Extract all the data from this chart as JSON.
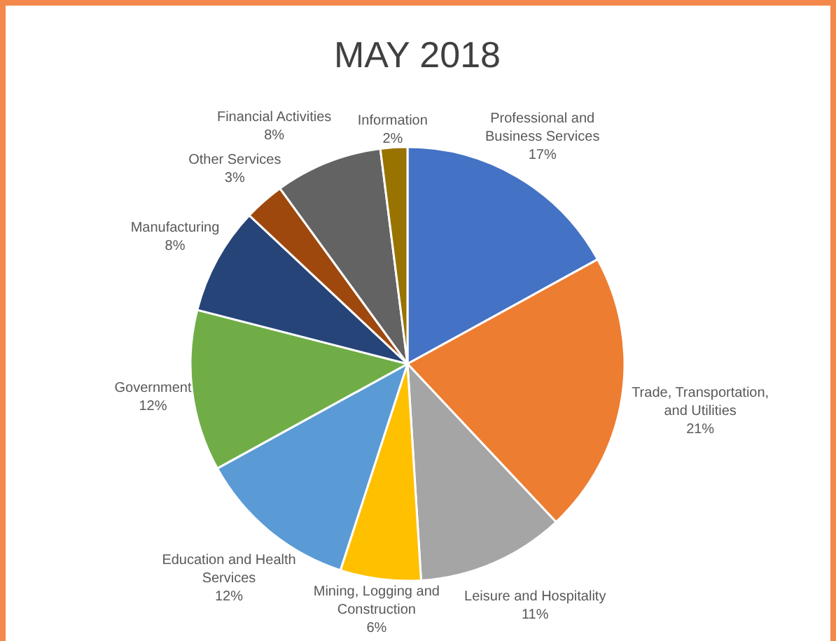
{
  "chart_data": {
    "type": "pie",
    "title": "MAY 2018",
    "categories": [
      "Professional and Business Services",
      "Trade, Transportation, and Utilities",
      "Leisure and Hospitality",
      "Mining, Logging and Construction",
      "Education and Health Services",
      "Government",
      "Manufacturing",
      "Other Services",
      "Financial Activities",
      "Information"
    ],
    "values": [
      17,
      21,
      11,
      6,
      12,
      12,
      8,
      3,
      8,
      2
    ],
    "value_labels": [
      "17%",
      "21%",
      "11%",
      "6%",
      "12%",
      "12%",
      "8%",
      "3%",
      "8%",
      "2%"
    ],
    "colors": [
      "#4472c4",
      "#ed7d31",
      "#a5a5a5",
      "#ffc000",
      "#5b9bd5",
      "#70ad47",
      "#264478",
      "#9e480e",
      "#636363",
      "#997300"
    ]
  }
}
